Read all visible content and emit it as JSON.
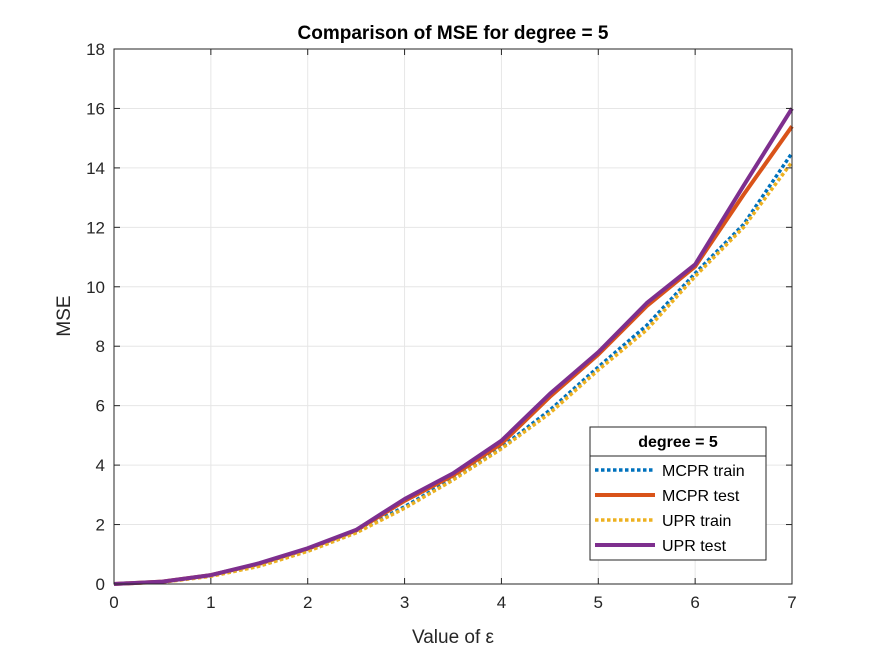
{
  "chart_data": {
    "type": "line",
    "title": "Comparison of MSE for degree = 5",
    "xlabel": "Value of ε",
    "ylabel": "MSE",
    "xlim": [
      0,
      7
    ],
    "ylim": [
      0,
      18
    ],
    "xticks": [
      0,
      1,
      2,
      3,
      4,
      5,
      6,
      7
    ],
    "yticks": [
      0,
      2,
      4,
      6,
      8,
      10,
      12,
      14,
      16,
      18
    ],
    "grid": true,
    "legend": {
      "title": "degree = 5",
      "position": "bottom-right"
    },
    "x": [
      0,
      0.5,
      1,
      1.5,
      2,
      2.5,
      3,
      3.5,
      4,
      4.5,
      5,
      5.5,
      6,
      6.5,
      7
    ],
    "series": [
      {
        "name": "MCPR train",
        "color": "#0072BD",
        "style": "dotted",
        "values": [
          0,
          0.07,
          0.28,
          0.62,
          1.12,
          1.76,
          2.6,
          3.55,
          4.6,
          5.85,
          7.3,
          8.7,
          10.45,
          12.1,
          14.5
        ]
      },
      {
        "name": "MCPR test",
        "color": "#D95319",
        "style": "solid",
        "values": [
          0,
          0.08,
          0.3,
          0.68,
          1.18,
          1.8,
          2.8,
          3.65,
          4.72,
          6.3,
          7.72,
          9.35,
          10.68,
          13.1,
          15.4
        ]
      },
      {
        "name": "UPR train",
        "color": "#EDB120",
        "style": "dotted",
        "values": [
          0,
          0.06,
          0.26,
          0.6,
          1.1,
          1.72,
          2.55,
          3.5,
          4.55,
          5.75,
          7.2,
          8.55,
          10.35,
          12.0,
          14.2
        ]
      },
      {
        "name": "UPR test",
        "color": "#7E2F8E",
        "style": "solid",
        "values": [
          0,
          0.08,
          0.3,
          0.7,
          1.2,
          1.82,
          2.86,
          3.72,
          4.82,
          6.4,
          7.8,
          9.45,
          10.75,
          13.4,
          16.0
        ]
      }
    ]
  }
}
